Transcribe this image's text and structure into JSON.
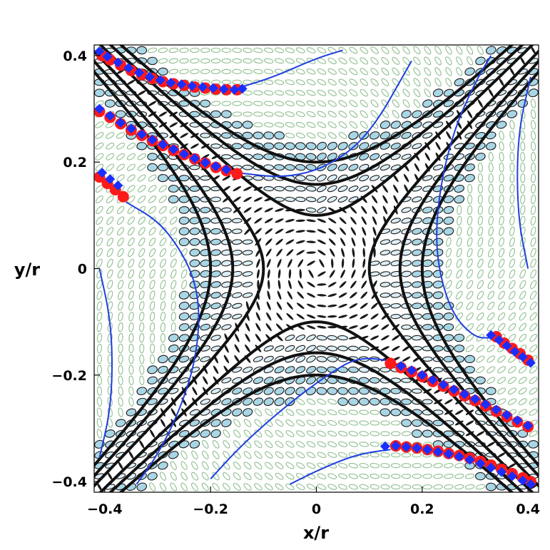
{
  "chart_data": {
    "type": "scatter",
    "xlabel": "x/r",
    "ylabel": "y/r",
    "xlim": [
      -0.42,
      0.42
    ],
    "ylim": [
      -0.42,
      0.42
    ],
    "x_ticks": [
      {
        "value": -0.4,
        "label": "−0.4"
      },
      {
        "value": -0.2,
        "label": "−0.2"
      },
      {
        "value": 0,
        "label": "0"
      },
      {
        "value": 0.2,
        "label": "0.2"
      },
      {
        "value": 0.4,
        "label": "0.4"
      }
    ],
    "y_ticks": [
      {
        "value": -0.4,
        "label": "−0.4"
      },
      {
        "value": -0.2,
        "label": "−0.2"
      },
      {
        "value": 0,
        "label": "0"
      },
      {
        "value": 0.2,
        "label": "0.2"
      },
      {
        "value": 0.4,
        "label": "0.4"
      }
    ],
    "glyph_grid": {
      "spacing": 0.02
    },
    "black_contours": {
      "levels": [
        0.01,
        0.025,
        0.04
      ],
      "color": "#111111"
    },
    "blue_curves": [
      {
        "x": [
          -0.145,
          -0.08,
          0.0,
          0.05
        ],
        "y": [
          0.34,
          0.36,
          0.395,
          0.41
        ]
      },
      {
        "x": [
          -0.15,
          -0.06,
          0.02,
          0.1,
          0.18
        ],
        "y": [
          0.18,
          0.17,
          0.19,
          0.25,
          0.39
        ]
      },
      {
        "x": [
          -0.36,
          -0.3,
          -0.26,
          -0.23,
          -0.22,
          -0.23,
          -0.26,
          -0.3,
          -0.34
        ],
        "y": [
          0.125,
          0.09,
          0.04,
          -0.02,
          -0.09,
          -0.18,
          -0.27,
          -0.35,
          -0.405
        ]
      },
      {
        "x": [
          -0.41,
          -0.39,
          -0.385,
          -0.39,
          -0.41
        ],
        "y": [
          0.0,
          -0.09,
          -0.18,
          -0.27,
          -0.355
        ]
      },
      {
        "x": [
          0.33,
          0.3,
          0.26,
          0.235,
          0.225,
          0.235,
          0.26,
          0.3,
          0.33
        ],
        "y": [
          0.4,
          0.35,
          0.26,
          0.16,
          0.06,
          -0.02,
          -0.09,
          -0.13,
          -0.13
        ]
      },
      {
        "x": [
          0.405,
          0.38,
          0.38,
          0.4
        ],
        "y": [
          0.36,
          0.25,
          0.1,
          0.0
        ]
      },
      {
        "x": [
          -0.2,
          -0.14,
          -0.06,
          0.02,
          0.08,
          0.15
        ],
        "y": [
          -0.395,
          -0.33,
          -0.26,
          -0.2,
          -0.165,
          -0.175
        ]
      },
      {
        "x": [
          -0.05,
          0.0,
          0.06,
          0.1,
          0.14
        ],
        "y": [
          -0.405,
          -0.38,
          -0.355,
          -0.345,
          -0.34
        ]
      }
    ],
    "blue_curve_color": "#1f3fe0",
    "series": [
      {
        "color": "#ff1a1a",
        "x": [
          -0.405,
          -0.39,
          -0.37,
          -0.35,
          -0.33,
          -0.31,
          -0.29,
          -0.27,
          -0.25,
          -0.23,
          -0.21,
          -0.19,
          -0.17,
          -0.15,
          -0.41,
          -0.39,
          -0.37,
          -0.35,
          -0.33,
          -0.31,
          -0.29,
          -0.27,
          -0.25,
          -0.23,
          -0.21,
          -0.19,
          -0.17,
          -0.15,
          -0.41,
          -0.395,
          -0.38,
          -0.365,
          0.34,
          0.355,
          0.37,
          0.385,
          0.4,
          0.14,
          0.16,
          0.18,
          0.2,
          0.22,
          0.24,
          0.26,
          0.28,
          0.3,
          0.32,
          0.34,
          0.36,
          0.38,
          0.4,
          0.15,
          0.17,
          0.19,
          0.21,
          0.23,
          0.25,
          0.27,
          0.29,
          0.31,
          0.33,
          0.35,
          0.37,
          0.39,
          0.405
        ],
        "y": [
          0.4,
          0.392,
          0.382,
          0.372,
          0.364,
          0.357,
          0.351,
          0.347,
          0.344,
          0.341,
          0.339,
          0.337,
          0.336,
          0.336,
          0.295,
          0.284,
          0.272,
          0.26,
          0.25,
          0.24,
          0.231,
          0.222,
          0.214,
          0.206,
          0.198,
          0.19,
          0.184,
          0.178,
          0.172,
          0.16,
          0.148,
          0.135,
          -0.128,
          -0.14,
          -0.15,
          -0.16,
          -0.172,
          -0.178,
          -0.186,
          -0.194,
          -0.203,
          -0.212,
          -0.221,
          -0.23,
          -0.239,
          -0.248,
          -0.258,
          -0.268,
          -0.278,
          -0.288,
          -0.297,
          -0.333,
          -0.335,
          -0.337,
          -0.34,
          -0.343,
          -0.347,
          -0.351,
          -0.356,
          -0.362,
          -0.369,
          -0.377,
          -0.385,
          -0.393,
          -0.4
        ]
      },
      {
        "color": "#1a2fff",
        "x": [
          -0.41,
          -0.395,
          -0.375,
          -0.355,
          -0.335,
          -0.315,
          -0.295,
          -0.275,
          -0.255,
          -0.235,
          -0.215,
          -0.195,
          -0.175,
          -0.155,
          -0.14,
          -0.41,
          -0.39,
          -0.37,
          -0.35,
          -0.33,
          -0.31,
          -0.29,
          -0.27,
          -0.25,
          -0.23,
          -0.21,
          -0.19,
          -0.17,
          -0.405,
          -0.39,
          -0.375,
          0.33,
          0.345,
          0.36,
          0.375,
          0.39,
          0.405,
          0.16,
          0.18,
          0.2,
          0.22,
          0.24,
          0.26,
          0.28,
          0.3,
          0.32,
          0.34,
          0.36,
          0.38,
          0.4,
          0.13,
          0.15,
          0.17,
          0.19,
          0.21,
          0.23,
          0.25,
          0.27,
          0.29,
          0.31,
          0.33,
          0.35,
          0.37,
          0.39,
          0.405
        ],
        "y": [
          0.408,
          0.398,
          0.387,
          0.377,
          0.368,
          0.36,
          0.354,
          0.349,
          0.346,
          0.343,
          0.341,
          0.339,
          0.337,
          0.336,
          0.338,
          0.3,
          0.287,
          0.274,
          0.263,
          0.252,
          0.242,
          0.233,
          0.224,
          0.215,
          0.207,
          0.199,
          0.192,
          0.186,
          0.18,
          0.168,
          0.156,
          -0.125,
          -0.134,
          -0.145,
          -0.156,
          -0.166,
          -0.177,
          -0.183,
          -0.191,
          -0.2,
          -0.209,
          -0.218,
          -0.227,
          -0.236,
          -0.245,
          -0.255,
          -0.265,
          -0.275,
          -0.285,
          -0.295,
          -0.334,
          -0.333,
          -0.335,
          -0.337,
          -0.34,
          -0.344,
          -0.348,
          -0.353,
          -0.359,
          -0.366,
          -0.374,
          -0.382,
          -0.39,
          -0.398,
          -0.405
        ]
      }
    ]
  }
}
